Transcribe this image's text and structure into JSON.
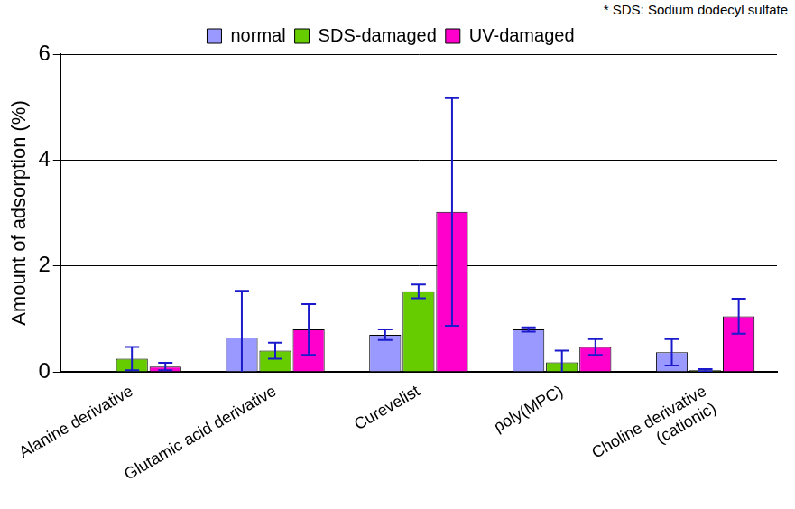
{
  "chart_data": {
    "type": "bar",
    "annotations": [
      "* SDS: Sodium dodecyl sulfate"
    ],
    "y_label": "Amount of adsorption (%)",
    "categories": [
      "Alanine derivative",
      "Glutamic acid derivative",
      "Curevelist",
      "poly(MPC)",
      [
        "Choline derivative",
        "(cationic)"
      ]
    ],
    "series": [
      {
        "name": "normal",
        "color": "#9999ff",
        "values": [
          0,
          0.65,
          0.7,
          0.8,
          0.37
        ],
        "errors": [
          0,
          0.88,
          0.1,
          0.04,
          0.25
        ]
      },
      {
        "name": "SDS-damaged",
        "color": "#66cc00",
        "values": [
          0.25,
          0.4,
          1.52,
          0.18,
          0.03
        ],
        "errors": [
          0.22,
          0.15,
          0.13,
          0.22,
          0.02
        ]
      },
      {
        "name": "UV-damaged",
        "color": "#ff00cc",
        "values": [
          0.1,
          0.8,
          3.02,
          0.47,
          1.05
        ],
        "errors": [
          0.07,
          0.48,
          2.15,
          0.15,
          0.33
        ]
      }
    ],
    "ylim": [
      0,
      6
    ],
    "yticks": [
      0,
      2,
      4,
      6
    ],
    "grid": true,
    "legend": "top"
  }
}
